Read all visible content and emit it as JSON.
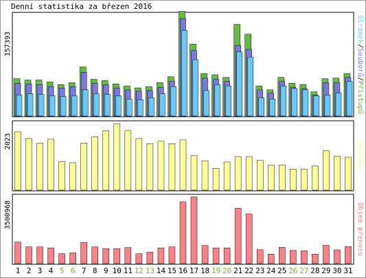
{
  "title": "Denní statistika za březen 2016",
  "colors": {
    "pristupu": "#66bb44",
    "souboru": "#7b79e6",
    "stranek": "#66ccff",
    "navstev": "#ffff99",
    "objem": "#f4848a",
    "weekday": "#000000",
    "weekend": "#80b030",
    "axis_frame": "#000000"
  },
  "chart_data": [
    {
      "type": "bar",
      "panel": "hits",
      "ylabel_max": "157393",
      "ylim": [
        0,
        157393
      ],
      "legend_text": [
        "Přístupů",
        "Souborů",
        "Stránek"
      ],
      "legend_separators": [
        "/",
        "/"
      ],
      "categories": [
        "1",
        "2",
        "3",
        "4",
        "5",
        "6",
        "7",
        "8",
        "9",
        "10",
        "11",
        "12",
        "13",
        "14",
        "15",
        "16",
        "17",
        "18",
        "19",
        "20",
        "21",
        "22",
        "23",
        "24",
        "25",
        "26",
        "27",
        "28",
        "29",
        "30",
        "31"
      ],
      "series": [
        {
          "name": "Přístupů",
          "color": "#66bb44",
          "values": [
            57000,
            55000,
            55000,
            52000,
            48000,
            51000,
            75000,
            56000,
            54000,
            49000,
            46000,
            43000,
            45000,
            51000,
            60000,
            160000,
            110000,
            65000,
            63000,
            59000,
            140000,
            125000,
            46000,
            40000,
            59000,
            50000,
            48000,
            37000,
            57000,
            58000,
            65000
          ]
        },
        {
          "name": "Souborů",
          "color": "#7b79e6",
          "values": [
            52000,
            51000,
            50000,
            47000,
            45000,
            47000,
            69000,
            52000,
            50000,
            45000,
            42000,
            40000,
            41000,
            46000,
            55000,
            151000,
            102000,
            60000,
            58000,
            55000,
            110000,
            104000,
            42000,
            37000,
            55000,
            46000,
            44000,
            34000,
            53000,
            53000,
            61000
          ]
        },
        {
          "name": "Stránek",
          "color": "#66ccff",
          "values": [
            32000,
            34000,
            33000,
            31000,
            30000,
            31000,
            40000,
            34000,
            33000,
            31000,
            26000,
            25000,
            28000,
            34000,
            45000,
            131000,
            86000,
            39000,
            48000,
            46000,
            98000,
            90000,
            28000,
            26000,
            46000,
            42000,
            40000,
            31000,
            32000,
            35000,
            53000
          ]
        }
      ],
      "grid": false
    },
    {
      "type": "bar",
      "panel": "visits",
      "ylabel_max": "2023",
      "ylim": [
        0,
        2023
      ],
      "legend_text": [
        "Návštěv"
      ],
      "categories": [
        "1",
        "2",
        "3",
        "4",
        "5",
        "6",
        "7",
        "8",
        "9",
        "10",
        "11",
        "12",
        "13",
        "14",
        "15",
        "16",
        "17",
        "18",
        "19",
        "20",
        "21",
        "22",
        "23",
        "24",
        "25",
        "26",
        "27",
        "28",
        "29",
        "30",
        "31"
      ],
      "series": [
        {
          "name": "Návštěv",
          "color": "#ffff99",
          "values": [
            1720,
            1520,
            1390,
            1500,
            840,
            810,
            1390,
            1570,
            1750,
            1950,
            1760,
            1520,
            1370,
            1440,
            1370,
            1480,
            1020,
            860,
            640,
            830,
            990,
            990,
            880,
            740,
            740,
            620,
            620,
            710,
            1160,
            1000,
            970
          ]
        }
      ],
      "grid": false
    },
    {
      "type": "bar",
      "panel": "volume",
      "ylabel_max": "3500968",
      "ylim": [
        0,
        3500968
      ],
      "legend_text": [
        "Objem přenosu"
      ],
      "categories": [
        "1",
        "2",
        "3",
        "4",
        "5",
        "6",
        "7",
        "8",
        "9",
        "10",
        "11",
        "12",
        "13",
        "14",
        "15",
        "16",
        "17",
        "18",
        "19",
        "20",
        "21",
        "22",
        "23",
        "24",
        "25",
        "26",
        "27",
        "28",
        "29",
        "30",
        "31"
      ],
      "series": [
        {
          "name": "Objem přenosu",
          "color": "#f4848a",
          "values": [
            1100000,
            850000,
            850000,
            800000,
            500000,
            550000,
            1080000,
            850000,
            760000,
            760000,
            820000,
            500000,
            580000,
            800000,
            850000,
            3150000,
            3400000,
            920000,
            800000,
            800000,
            2820000,
            2530000,
            710000,
            480000,
            830000,
            670000,
            650000,
            480000,
            930000,
            700000,
            870000
          ]
        }
      ],
      "grid": false
    }
  ],
  "x_axis": {
    "labels": [
      "1",
      "2",
      "3",
      "4",
      "5",
      "6",
      "7",
      "8",
      "9",
      "10",
      "11",
      "12",
      "13",
      "14",
      "15",
      "16",
      "17",
      "18",
      "19",
      "20",
      "21",
      "22",
      "23",
      "24",
      "25",
      "26",
      "27",
      "28",
      "29",
      "30",
      "31"
    ],
    "weekend_days": [
      "5",
      "6",
      "12",
      "13",
      "19",
      "20",
      "26",
      "27"
    ]
  }
}
